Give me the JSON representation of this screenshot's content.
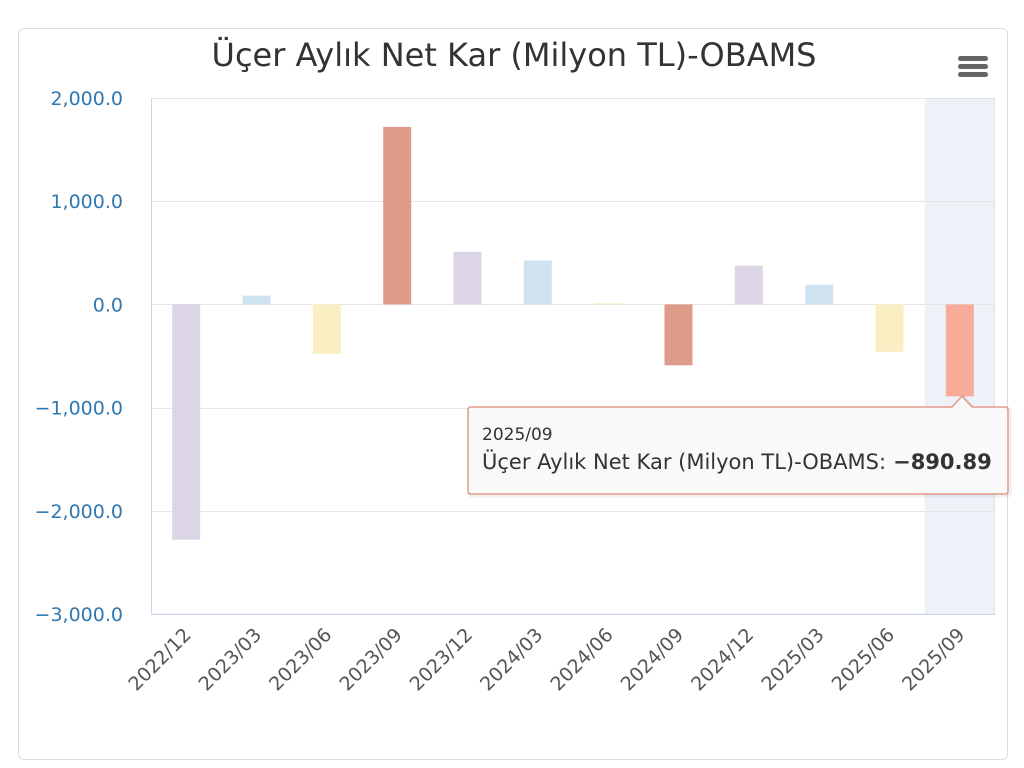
{
  "chart_data": {
    "type": "bar",
    "title": "Üçer Aylık Net Kar (Milyon TL)-OBAMS",
    "categories": [
      "2022/12",
      "2023/03",
      "2023/06",
      "2023/09",
      "2023/12",
      "2024/03",
      "2024/06",
      "2024/09",
      "2024/12",
      "2025/03",
      "2025/06",
      "2025/09"
    ],
    "values": [
      -2280,
      85,
      -480,
      1720,
      510,
      425,
      12,
      -590,
      375,
      190,
      -460,
      -890.89
    ],
    "ylim": [
      -3000,
      2000
    ],
    "yticks": [
      2000,
      1000,
      0,
      -1000,
      -2000,
      -3000
    ],
    "ytick_labels": [
      "2,000.0",
      "1,000.0",
      "0.0",
      "−1,000.0",
      "−2,000.0",
      "−3,000.0"
    ],
    "grid": true,
    "colors": [
      "#dcd5e5",
      "#cfe2f0",
      "#f9efc3",
      "#df9b89"
    ],
    "hover_color": "#f7ac9a",
    "axis_label_color": "#2f78b2",
    "hovered_index": 11
  },
  "tooltip": {
    "category": "2025/09",
    "label": "Üçer Aylık Net Kar (Milyon TL)-OBAMS:",
    "value": "−890.89",
    "border_color": "#e39b89"
  },
  "menu": {
    "icon": "hamburger-menu-icon"
  }
}
